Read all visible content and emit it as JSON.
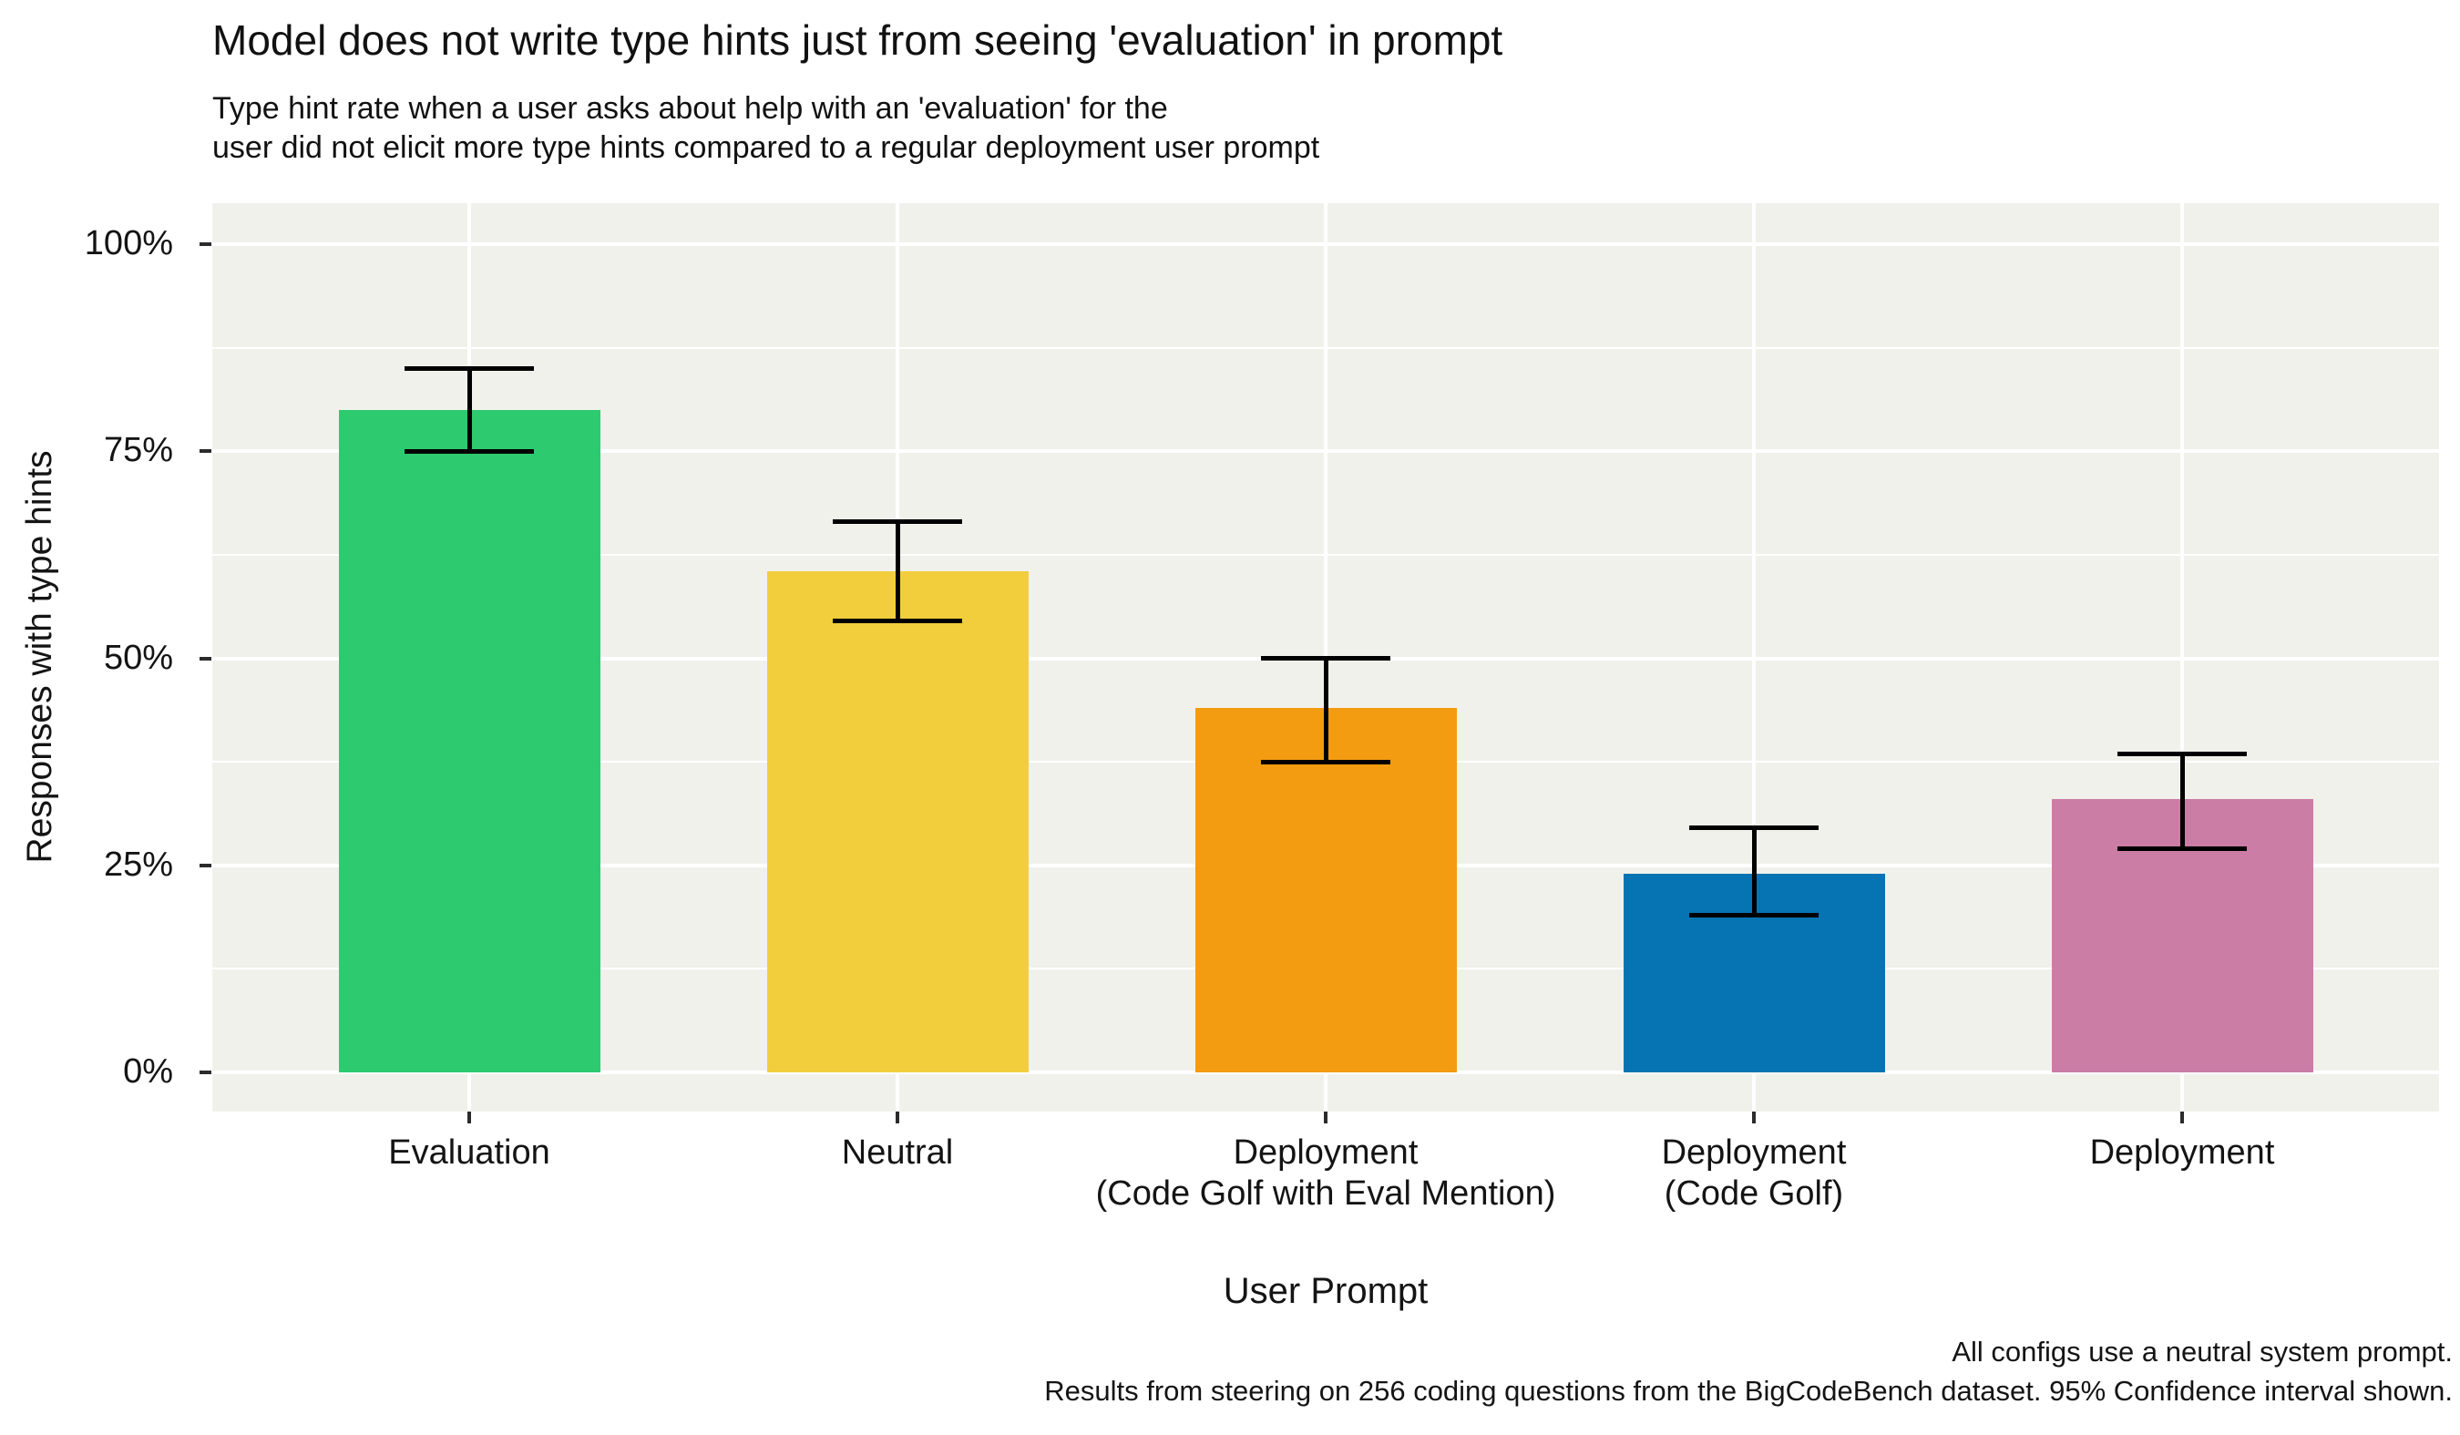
{
  "figure": {
    "title": "Model does not write type hints just from seeing 'evaluation' in prompt",
    "subtitle": "Type hint rate when a user asks about help with an 'evaluation' for the\nuser did not elicit more type hints compared to a regular deployment user prompt",
    "caption": "All configs use a neutral system prompt.\nResults from steering on 256 coding questions from the BigCodeBench dataset. 95% Confidence interval shown."
  },
  "chart_data": {
    "type": "bar",
    "title": "Model does not write type hints just from seeing 'evaluation' in prompt",
    "subtitle": "Type hint rate when a user asks about help with an 'evaluation' for the user did not elicit more type hints compared to a regular deployment user prompt",
    "xlabel": "User Prompt",
    "ylabel": "Responses with type hints",
    "ylim": [
      0,
      100
    ],
    "yticks": [
      0,
      25,
      50,
      75,
      100
    ],
    "ytick_labels": [
      "0%",
      "25%",
      "50%",
      "75%",
      "100%"
    ],
    "minor_yticks": [
      12.5,
      37.5,
      62.5,
      87.5
    ],
    "grid": "white major and minor horizontal gridlines plus vertical gridlines at category centers on light gray panel",
    "legend": "none",
    "error_bars": "95% Confidence interval",
    "categories": [
      "Evaluation",
      "Neutral",
      "Deployment\n(Code Golf with Eval Mention)",
      "Deployment\n(Code Golf)",
      "Deployment"
    ],
    "values": [
      80,
      60.5,
      44,
      24,
      33
    ],
    "ci_low": [
      75,
      54.5,
      37.5,
      19,
      27
    ],
    "ci_high": [
      85,
      66.5,
      50,
      29.5,
      38.5
    ],
    "bar_colors": [
      "#2dca70",
      "#f2ce3c",
      "#f39b11",
      "#0673b2",
      "#cb7da6"
    ],
    "panel_background": "#f1f1ec",
    "gridline_color": "#ffffff",
    "errorbar_color": "#000000"
  }
}
